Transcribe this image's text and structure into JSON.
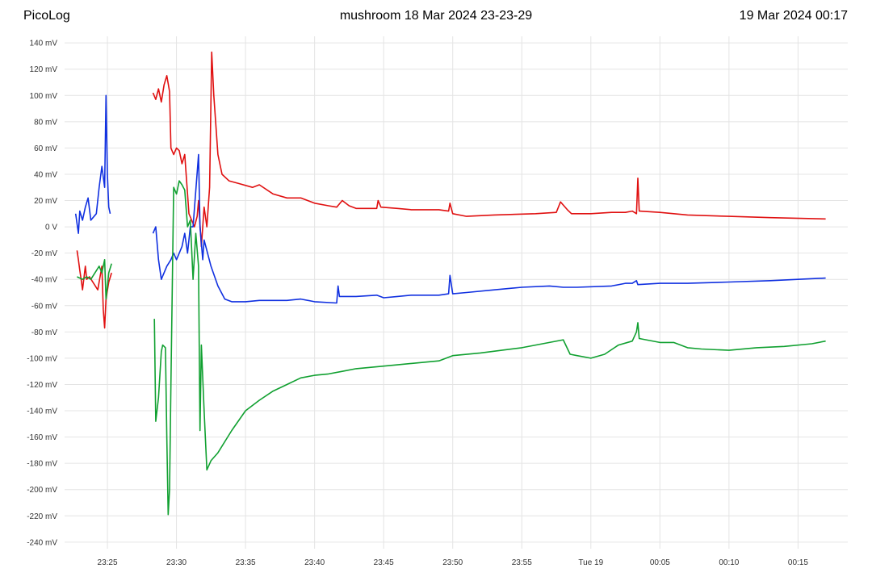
{
  "header": {
    "app_name": "PicoLog",
    "capture_title": "mushroom 18 Mar 2024 23-23-29",
    "datetime": "19 Mar 2024 00:17"
  },
  "chart_data": {
    "type": "line",
    "title": "mushroom 18 Mar 2024 23-23-29",
    "xlabel": "",
    "ylabel": "",
    "x_unit": "minutes relative to 23:25",
    "xlim": [
      -3.1,
      53.6
    ],
    "ylim": [
      -245,
      145
    ],
    "grid": true,
    "legend": "none",
    "y_ticks": [
      {
        "value": 140,
        "label": "140 mV"
      },
      {
        "value": 120,
        "label": "120 mV"
      },
      {
        "value": 100,
        "label": "100 mV"
      },
      {
        "value": 80,
        "label": "80 mV"
      },
      {
        "value": 60,
        "label": "60 mV"
      },
      {
        "value": 40,
        "label": "40 mV"
      },
      {
        "value": 20,
        "label": "20 mV"
      },
      {
        "value": 0,
        "label": "0 V"
      },
      {
        "value": -20,
        "label": "-20 mV"
      },
      {
        "value": -40,
        "label": "-40 mV"
      },
      {
        "value": -60,
        "label": "-60 mV"
      },
      {
        "value": -80,
        "label": "-80 mV"
      },
      {
        "value": -100,
        "label": "-100 mV"
      },
      {
        "value": -120,
        "label": "-120 mV"
      },
      {
        "value": -140,
        "label": "-140 mV"
      },
      {
        "value": -160,
        "label": "-160 mV"
      },
      {
        "value": -180,
        "label": "-180 mV"
      },
      {
        "value": -200,
        "label": "-200 mV"
      },
      {
        "value": -220,
        "label": "-220 mV"
      },
      {
        "value": -240,
        "label": "-240 mV"
      }
    ],
    "x_ticks": [
      {
        "value": 0,
        "label": "23:25"
      },
      {
        "value": 5,
        "label": "23:30"
      },
      {
        "value": 10,
        "label": "23:35"
      },
      {
        "value": 15,
        "label": "23:40"
      },
      {
        "value": 20,
        "label": "23:45"
      },
      {
        "value": 25,
        "label": "23:50"
      },
      {
        "value": 30,
        "label": "23:55"
      },
      {
        "value": 35,
        "label": "Tue 19"
      },
      {
        "value": 40,
        "label": "00:05"
      },
      {
        "value": 45,
        "label": "00:10"
      },
      {
        "value": 50,
        "label": "00:15"
      }
    ],
    "series": [
      {
        "color": "#e01010",
        "segments": [
          [
            [
              -2.2,
              -18
            ],
            [
              -2.1,
              -25
            ],
            [
              -2.0,
              -33
            ],
            [
              -1.9,
              -40
            ],
            [
              -1.8,
              -48
            ],
            [
              -1.6,
              -30
            ],
            [
              -1.5,
              -40
            ],
            [
              -1.3,
              -38
            ],
            [
              -0.7,
              -48
            ],
            [
              -0.4,
              -30
            ],
            [
              -0.3,
              -63
            ],
            [
              -0.2,
              -77
            ],
            [
              -0.1,
              -55
            ],
            [
              0.1,
              -42
            ],
            [
              0.3,
              -35
            ]
          ],
          [
            [
              3.3,
              102
            ],
            [
              3.5,
              97
            ],
            [
              3.7,
              105
            ],
            [
              3.9,
              95
            ],
            [
              4.1,
              108
            ],
            [
              4.3,
              115
            ],
            [
              4.5,
              103
            ],
            [
              4.6,
              60
            ],
            [
              4.8,
              55
            ],
            [
              5.0,
              60
            ],
            [
              5.2,
              58
            ],
            [
              5.4,
              48
            ],
            [
              5.6,
              55
            ],
            [
              5.9,
              10
            ],
            [
              6.1,
              5
            ],
            [
              6.3,
              0
            ],
            [
              6.5,
              8
            ],
            [
              6.6,
              20
            ],
            [
              6.8,
              -15
            ],
            [
              7.0,
              15
            ],
            [
              7.2,
              0
            ],
            [
              7.4,
              30
            ],
            [
              7.55,
              133
            ],
            [
              7.7,
              100
            ],
            [
              8.0,
              55
            ],
            [
              8.3,
              40
            ],
            [
              8.8,
              35
            ],
            [
              9.5,
              33
            ],
            [
              10.5,
              30
            ],
            [
              11.0,
              32
            ],
            [
              12.0,
              25
            ],
            [
              13.0,
              22
            ],
            [
              14.0,
              22
            ],
            [
              15.0,
              18
            ],
            [
              16.0,
              16
            ],
            [
              16.6,
              15
            ],
            [
              17.0,
              20
            ],
            [
              17.5,
              16
            ],
            [
              18.0,
              14
            ],
            [
              19.5,
              14
            ],
            [
              19.6,
              20
            ],
            [
              19.8,
              15
            ],
            [
              21.0,
              14
            ],
            [
              22.0,
              13
            ],
            [
              24.0,
              13
            ],
            [
              24.7,
              12
            ],
            [
              24.8,
              18
            ],
            [
              25.0,
              10
            ],
            [
              26.0,
              8
            ],
            [
              28.0,
              9
            ],
            [
              31.0,
              10
            ],
            [
              32.5,
              11
            ],
            [
              32.8,
              19
            ],
            [
              33.3,
              13
            ],
            [
              33.6,
              10
            ],
            [
              35.0,
              10
            ],
            [
              36.5,
              11
            ],
            [
              37.5,
              11
            ],
            [
              38.0,
              12
            ],
            [
              38.3,
              10
            ],
            [
              38.4,
              37
            ],
            [
              38.5,
              12
            ],
            [
              40.0,
              11
            ],
            [
              42.0,
              9
            ],
            [
              45.0,
              8
            ],
            [
              48.0,
              7
            ],
            [
              52.0,
              6
            ]
          ]
        ]
      },
      {
        "color": "#1030e0",
        "segments": [
          [
            [
              -2.3,
              10
            ],
            [
              -2.1,
              -5
            ],
            [
              -2.0,
              12
            ],
            [
              -1.8,
              5
            ],
            [
              -1.6,
              15
            ],
            [
              -1.4,
              22
            ],
            [
              -1.2,
              5
            ],
            [
              -0.8,
              10
            ],
            [
              -0.6,
              30
            ],
            [
              -0.4,
              46
            ],
            [
              -0.2,
              30
            ],
            [
              -0.1,
              100
            ],
            [
              0.0,
              40
            ],
            [
              0.1,
              15
            ],
            [
              0.2,
              10
            ]
          ],
          [
            [
              3.3,
              -5
            ],
            [
              3.5,
              0
            ],
            [
              3.7,
              -25
            ],
            [
              3.9,
              -40
            ],
            [
              4.1,
              -35
            ],
            [
              4.3,
              -30
            ],
            [
              4.6,
              -25
            ],
            [
              4.8,
              -20
            ],
            [
              5.0,
              -25
            ],
            [
              5.2,
              -20
            ],
            [
              5.4,
              -15
            ],
            [
              5.6,
              -5
            ],
            [
              5.8,
              -20
            ],
            [
              6.0,
              0
            ],
            [
              6.2,
              0
            ],
            [
              6.6,
              55
            ],
            [
              6.7,
              0
            ],
            [
              6.9,
              -25
            ],
            [
              7.0,
              -10
            ],
            [
              7.5,
              -30
            ],
            [
              8.0,
              -45
            ],
            [
              8.5,
              -55
            ],
            [
              9.0,
              -57
            ],
            [
              10.0,
              -57
            ],
            [
              11.0,
              -56
            ],
            [
              13.0,
              -56
            ],
            [
              14.0,
              -55
            ],
            [
              15.0,
              -57
            ],
            [
              16.6,
              -58
            ],
            [
              16.7,
              -45
            ],
            [
              16.8,
              -53
            ],
            [
              18.0,
              -53
            ],
            [
              19.5,
              -52
            ],
            [
              20.0,
              -54
            ],
            [
              21.0,
              -53
            ],
            [
              22.0,
              -52
            ],
            [
              24.0,
              -52
            ],
            [
              24.7,
              -51
            ],
            [
              24.8,
              -37
            ],
            [
              25.0,
              -51
            ],
            [
              26.0,
              -50
            ],
            [
              28.0,
              -48
            ],
            [
              30.0,
              -46
            ],
            [
              32.0,
              -45
            ],
            [
              33.0,
              -46
            ],
            [
              34.0,
              -46
            ],
            [
              36.5,
              -45
            ],
            [
              37.5,
              -43
            ],
            [
              38.0,
              -43
            ],
            [
              38.3,
              -41
            ],
            [
              38.4,
              -44
            ],
            [
              40.0,
              -43
            ],
            [
              42.0,
              -43
            ],
            [
              45.0,
              -42
            ],
            [
              48.0,
              -41
            ],
            [
              52.0,
              -39
            ]
          ]
        ]
      },
      {
        "color": "#10a030",
        "segments": [
          [
            [
              -2.2,
              -38
            ],
            [
              -1.8,
              -40
            ],
            [
              -1.5,
              -38
            ],
            [
              -1.2,
              -40
            ],
            [
              -0.6,
              -30
            ],
            [
              -0.4,
              -35
            ],
            [
              -0.2,
              -25
            ],
            [
              -0.1,
              -55
            ],
            [
              0.1,
              -35
            ],
            [
              0.3,
              -28
            ]
          ],
          [
            [
              3.4,
              -70
            ],
            [
              3.5,
              -148
            ],
            [
              3.7,
              -130
            ],
            [
              3.9,
              -95
            ],
            [
              4.0,
              -90
            ],
            [
              4.2,
              -92
            ],
            [
              4.3,
              -160
            ],
            [
              4.4,
              -219
            ],
            [
              4.5,
              -200
            ],
            [
              4.6,
              -120
            ],
            [
              4.8,
              30
            ],
            [
              5.0,
              25
            ],
            [
              5.2,
              35
            ],
            [
              5.4,
              32
            ],
            [
              5.6,
              28
            ],
            [
              5.8,
              0
            ],
            [
              6.0,
              5
            ],
            [
              6.2,
              -40
            ],
            [
              6.4,
              -5
            ],
            [
              6.6,
              -30
            ],
            [
              6.7,
              -155
            ],
            [
              6.8,
              -90
            ],
            [
              7.0,
              -140
            ],
            [
              7.2,
              -185
            ],
            [
              7.5,
              -178
            ],
            [
              8.0,
              -172
            ],
            [
              9.0,
              -155
            ],
            [
              10.0,
              -140
            ],
            [
              11.0,
              -132
            ],
            [
              12.0,
              -125
            ],
            [
              13.0,
              -120
            ],
            [
              14.0,
              -115
            ],
            [
              15.0,
              -113
            ],
            [
              16.0,
              -112
            ],
            [
              17.0,
              -110
            ],
            [
              18.0,
              -108
            ],
            [
              19.0,
              -107
            ],
            [
              20.0,
              -106
            ],
            [
              21.0,
              -105
            ],
            [
              22.0,
              -104
            ],
            [
              24.0,
              -102
            ],
            [
              25.0,
              -98
            ],
            [
              27.0,
              -96
            ],
            [
              30.0,
              -92
            ],
            [
              32.0,
              -88
            ],
            [
              33.0,
              -86
            ],
            [
              33.5,
              -97
            ],
            [
              34.0,
              -98
            ],
            [
              35.0,
              -100
            ],
            [
              36.0,
              -97
            ],
            [
              37.0,
              -90
            ],
            [
              38.0,
              -87
            ],
            [
              38.3,
              -80
            ],
            [
              38.4,
              -73
            ],
            [
              38.5,
              -85
            ],
            [
              40.0,
              -88
            ],
            [
              41.0,
              -88
            ],
            [
              42.0,
              -92
            ],
            [
              43.0,
              -93
            ],
            [
              45.0,
              -94
            ],
            [
              47.0,
              -92
            ],
            [
              49.0,
              -91
            ],
            [
              51.0,
              -89
            ],
            [
              52.0,
              -87
            ]
          ]
        ]
      }
    ]
  }
}
